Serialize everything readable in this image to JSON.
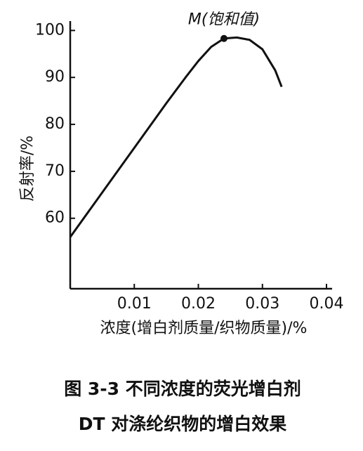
{
  "chart_data": {
    "type": "line",
    "ylabel": "反射率/%",
    "xlabel": "浓度(增白剂质量/织物质量)/%",
    "caption": [
      "图 3-3  不同浓度的荧光增白剂",
      "DT 对涤纶织物的增白效果"
    ],
    "x": [
      0,
      0.005,
      0.01,
      0.015,
      0.018,
      0.02,
      0.022,
      0.024,
      0.026,
      0.028,
      0.03,
      0.032,
      0.033
    ],
    "series": [
      {
        "color": "#111111",
        "values": [
          56,
          65.5,
          75,
          84.5,
          90,
          93.5,
          96.5,
          98.3,
          98.5,
          98,
          96,
          91.5,
          88
        ]
      }
    ],
    "marker": {
      "x": 0.024,
      "y": 98.3,
      "label": "M(饱和值)"
    },
    "xlim": [
      0,
      0.04
    ],
    "ylim": [
      45,
      102
    ],
    "xticks": [
      0.01,
      0.02,
      0.03,
      0.04
    ],
    "yticks": [
      60,
      70,
      80,
      90,
      100
    ]
  }
}
